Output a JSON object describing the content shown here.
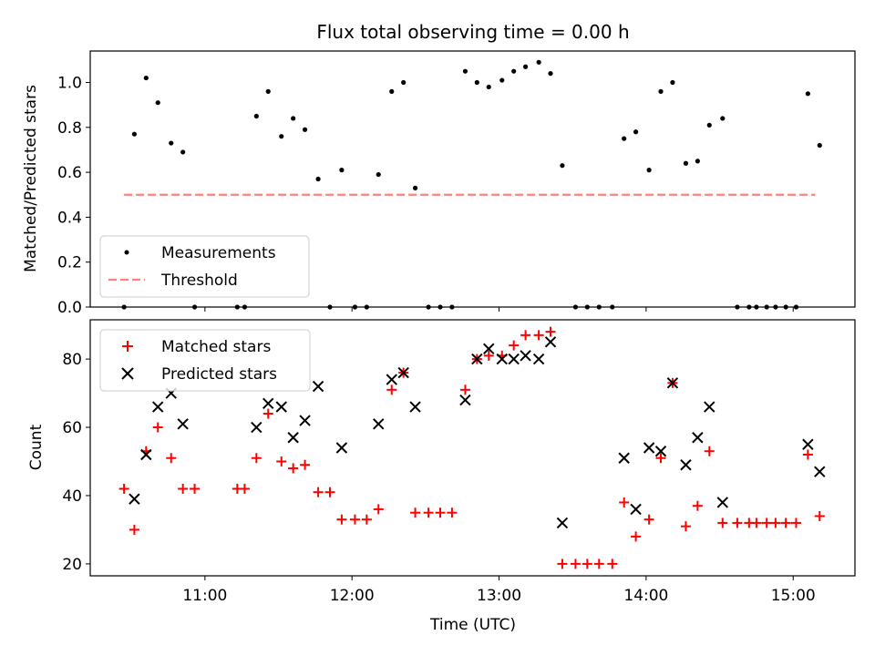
{
  "chart_data": {
    "type": "scatter",
    "title": "Flux total observing time = 0.00 h",
    "colors": {
      "measurement": "#000000",
      "threshold": "#ff8080",
      "matched": "#ff0000",
      "predicted": "#000000"
    },
    "x_tick_labels": [
      "11:00",
      "12:00",
      "13:00",
      "14:00",
      "15:00"
    ],
    "x_tick_hours": [
      11,
      12,
      13,
      14,
      15
    ],
    "xlabel": "Time (UTC)",
    "xlim_hours": [
      10.22,
      15.42
    ],
    "top": {
      "ylabel": "Matched/Predicted stars",
      "ylim": [
        0,
        1.14
      ],
      "y_ticks": [
        "0.0",
        "0.2",
        "0.4",
        "0.6",
        "0.8",
        "1.0"
      ],
      "threshold": {
        "value": 0.5,
        "x_range_hours": [
          10.45,
          15.15
        ]
      },
      "legend": [
        "Measurements",
        "Threshold"
      ],
      "points": [
        {
          "t": 10.45,
          "v": 0.0
        },
        {
          "t": 10.52,
          "v": 0.77
        },
        {
          "t": 10.6,
          "v": 1.02
        },
        {
          "t": 10.68,
          "v": 0.91
        },
        {
          "t": 10.77,
          "v": 0.73
        },
        {
          "t": 10.85,
          "v": 0.69
        },
        {
          "t": 10.93,
          "v": 0.0
        },
        {
          "t": 11.22,
          "v": 0.0
        },
        {
          "t": 11.27,
          "v": 0.0
        },
        {
          "t": 11.35,
          "v": 0.85
        },
        {
          "t": 11.43,
          "v": 0.96
        },
        {
          "t": 11.52,
          "v": 0.76
        },
        {
          "t": 11.6,
          "v": 0.84
        },
        {
          "t": 11.68,
          "v": 0.79
        },
        {
          "t": 11.77,
          "v": 0.57
        },
        {
          "t": 11.85,
          "v": 0.0
        },
        {
          "t": 11.93,
          "v": 0.61
        },
        {
          "t": 12.02,
          "v": 0.0
        },
        {
          "t": 12.1,
          "v": 0.0
        },
        {
          "t": 12.18,
          "v": 0.59
        },
        {
          "t": 12.27,
          "v": 0.96
        },
        {
          "t": 12.35,
          "v": 1.0
        },
        {
          "t": 12.43,
          "v": 0.53
        },
        {
          "t": 12.52,
          "v": 0.0
        },
        {
          "t": 12.6,
          "v": 0.0
        },
        {
          "t": 12.68,
          "v": 0.0
        },
        {
          "t": 12.77,
          "v": 1.05
        },
        {
          "t": 12.85,
          "v": 1.0
        },
        {
          "t": 12.93,
          "v": 0.98
        },
        {
          "t": 13.02,
          "v": 1.01
        },
        {
          "t": 13.1,
          "v": 1.05
        },
        {
          "t": 13.18,
          "v": 1.07
        },
        {
          "t": 13.27,
          "v": 1.09
        },
        {
          "t": 13.35,
          "v": 1.04
        },
        {
          "t": 13.43,
          "v": 0.63
        },
        {
          "t": 13.52,
          "v": 0.0
        },
        {
          "t": 13.6,
          "v": 0.0
        },
        {
          "t": 13.68,
          "v": 0.0
        },
        {
          "t": 13.77,
          "v": 0.0
        },
        {
          "t": 13.85,
          "v": 0.75
        },
        {
          "t": 13.93,
          "v": 0.78
        },
        {
          "t": 14.02,
          "v": 0.61
        },
        {
          "t": 14.1,
          "v": 0.96
        },
        {
          "t": 14.18,
          "v": 1.0
        },
        {
          "t": 14.27,
          "v": 0.64
        },
        {
          "t": 14.35,
          "v": 0.65
        },
        {
          "t": 14.43,
          "v": 0.81
        },
        {
          "t": 14.52,
          "v": 0.84
        },
        {
          "t": 14.62,
          "v": 0.0
        },
        {
          "t": 14.7,
          "v": 0.0
        },
        {
          "t": 14.75,
          "v": 0.0
        },
        {
          "t": 14.82,
          "v": 0.0
        },
        {
          "t": 14.88,
          "v": 0.0
        },
        {
          "t": 14.95,
          "v": 0.0
        },
        {
          "t": 15.02,
          "v": 0.0
        },
        {
          "t": 15.1,
          "v": 0.95
        },
        {
          "t": 15.18,
          "v": 0.72
        }
      ]
    },
    "bottom": {
      "ylabel": "Count",
      "ylim": [
        16.5,
        91.5
      ],
      "y_ticks": [
        20,
        40,
        60,
        80
      ],
      "legend": [
        "Matched stars",
        "Predicted stars"
      ],
      "matched": [
        {
          "t": 10.45,
          "v": 42
        },
        {
          "t": 10.52,
          "v": 30
        },
        {
          "t": 10.6,
          "v": 53
        },
        {
          "t": 10.68,
          "v": 60
        },
        {
          "t": 10.77,
          "v": 51
        },
        {
          "t": 10.85,
          "v": 42
        },
        {
          "t": 10.93,
          "v": 42
        },
        {
          "t": 11.22,
          "v": 42
        },
        {
          "t": 11.27,
          "v": 42
        },
        {
          "t": 11.35,
          "v": 51
        },
        {
          "t": 11.43,
          "v": 64
        },
        {
          "t": 11.52,
          "v": 50
        },
        {
          "t": 11.6,
          "v": 48
        },
        {
          "t": 11.68,
          "v": 49
        },
        {
          "t": 11.77,
          "v": 41
        },
        {
          "t": 11.85,
          "v": 41
        },
        {
          "t": 11.93,
          "v": 33
        },
        {
          "t": 12.02,
          "v": 33
        },
        {
          "t": 12.1,
          "v": 33
        },
        {
          "t": 12.18,
          "v": 36
        },
        {
          "t": 12.27,
          "v": 71
        },
        {
          "t": 12.35,
          "v": 76
        },
        {
          "t": 12.43,
          "v": 35
        },
        {
          "t": 12.52,
          "v": 35
        },
        {
          "t": 12.6,
          "v": 35
        },
        {
          "t": 12.68,
          "v": 35
        },
        {
          "t": 12.77,
          "v": 71
        },
        {
          "t": 12.85,
          "v": 80
        },
        {
          "t": 12.93,
          "v": 81
        },
        {
          "t": 13.02,
          "v": 81
        },
        {
          "t": 13.1,
          "v": 84
        },
        {
          "t": 13.18,
          "v": 87
        },
        {
          "t": 13.27,
          "v": 87
        },
        {
          "t": 13.35,
          "v": 88
        },
        {
          "t": 13.43,
          "v": 20
        },
        {
          "t": 13.52,
          "v": 20
        },
        {
          "t": 13.6,
          "v": 20
        },
        {
          "t": 13.68,
          "v": 20
        },
        {
          "t": 13.77,
          "v": 20
        },
        {
          "t": 13.85,
          "v": 38
        },
        {
          "t": 13.93,
          "v": 28
        },
        {
          "t": 14.02,
          "v": 33
        },
        {
          "t": 14.1,
          "v": 51
        },
        {
          "t": 14.18,
          "v": 73
        },
        {
          "t": 14.27,
          "v": 31
        },
        {
          "t": 14.35,
          "v": 37
        },
        {
          "t": 14.43,
          "v": 53
        },
        {
          "t": 14.52,
          "v": 32
        },
        {
          "t": 14.62,
          "v": 32
        },
        {
          "t": 14.7,
          "v": 32
        },
        {
          "t": 14.75,
          "v": 32
        },
        {
          "t": 14.82,
          "v": 32
        },
        {
          "t": 14.88,
          "v": 32
        },
        {
          "t": 14.95,
          "v": 32
        },
        {
          "t": 15.02,
          "v": 32
        },
        {
          "t": 15.1,
          "v": 52
        },
        {
          "t": 15.18,
          "v": 34
        }
      ],
      "predicted": [
        {
          "t": 10.52,
          "v": 39
        },
        {
          "t": 10.6,
          "v": 52
        },
        {
          "t": 10.68,
          "v": 66
        },
        {
          "t": 10.77,
          "v": 70
        },
        {
          "t": 10.85,
          "v": 61
        },
        {
          "t": 11.35,
          "v": 60
        },
        {
          "t": 11.43,
          "v": 67
        },
        {
          "t": 11.52,
          "v": 66
        },
        {
          "t": 11.6,
          "v": 57
        },
        {
          "t": 11.68,
          "v": 62
        },
        {
          "t": 11.77,
          "v": 72
        },
        {
          "t": 11.93,
          "v": 54
        },
        {
          "t": 12.18,
          "v": 61
        },
        {
          "t": 12.27,
          "v": 74
        },
        {
          "t": 12.35,
          "v": 76
        },
        {
          "t": 12.43,
          "v": 66
        },
        {
          "t": 12.77,
          "v": 68
        },
        {
          "t": 12.85,
          "v": 80
        },
        {
          "t": 12.93,
          "v": 83
        },
        {
          "t": 13.02,
          "v": 80
        },
        {
          "t": 13.1,
          "v": 80
        },
        {
          "t": 13.18,
          "v": 81
        },
        {
          "t": 13.27,
          "v": 80
        },
        {
          "t": 13.35,
          "v": 85
        },
        {
          "t": 13.43,
          "v": 32
        },
        {
          "t": 13.85,
          "v": 51
        },
        {
          "t": 13.93,
          "v": 36
        },
        {
          "t": 14.02,
          "v": 54
        },
        {
          "t": 14.1,
          "v": 53
        },
        {
          "t": 14.18,
          "v": 73
        },
        {
          "t": 14.27,
          "v": 49
        },
        {
          "t": 14.35,
          "v": 57
        },
        {
          "t": 14.43,
          "v": 66
        },
        {
          "t": 14.52,
          "v": 38
        },
        {
          "t": 15.1,
          "v": 55
        },
        {
          "t": 15.18,
          "v": 47
        }
      ]
    }
  }
}
